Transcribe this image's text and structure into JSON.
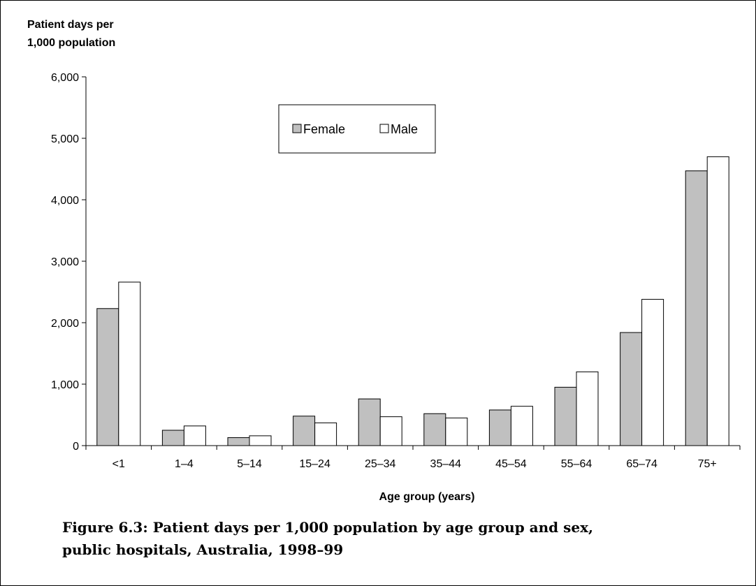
{
  "chart_data": {
    "type": "bar",
    "ylabel": "Patient days per 1,000 population",
    "xlabel": "Age group (years)",
    "ylim": [
      0,
      6000
    ],
    "yticks": [
      "0",
      "1,000",
      "2,000",
      "3,000",
      "4,000",
      "5,000",
      "6,000"
    ],
    "categories": [
      "<1",
      "1–4",
      "5–14",
      "15–24",
      "25–34",
      "35–44",
      "45–54",
      "55–64",
      "65–74",
      "75+"
    ],
    "series": [
      {
        "name": "Female",
        "color": "#c0c0c0",
        "values": [
          2230,
          250,
          130,
          480,
          760,
          520,
          580,
          950,
          1840,
          4470
        ]
      },
      {
        "name": "Male",
        "color": "#ffffff",
        "values": [
          2660,
          320,
          160,
          370,
          470,
          450,
          640,
          1200,
          2380,
          4700
        ]
      }
    ],
    "legend_position": "top-center",
    "grid": false
  },
  "ylabel_lines": [
    "Patient days per",
    "1,000 population"
  ],
  "caption_lines": [
    "Figure 6.3: Patient days per 1,000 population by age group and sex,",
    "public hospitals, Australia, 1998–99"
  ]
}
